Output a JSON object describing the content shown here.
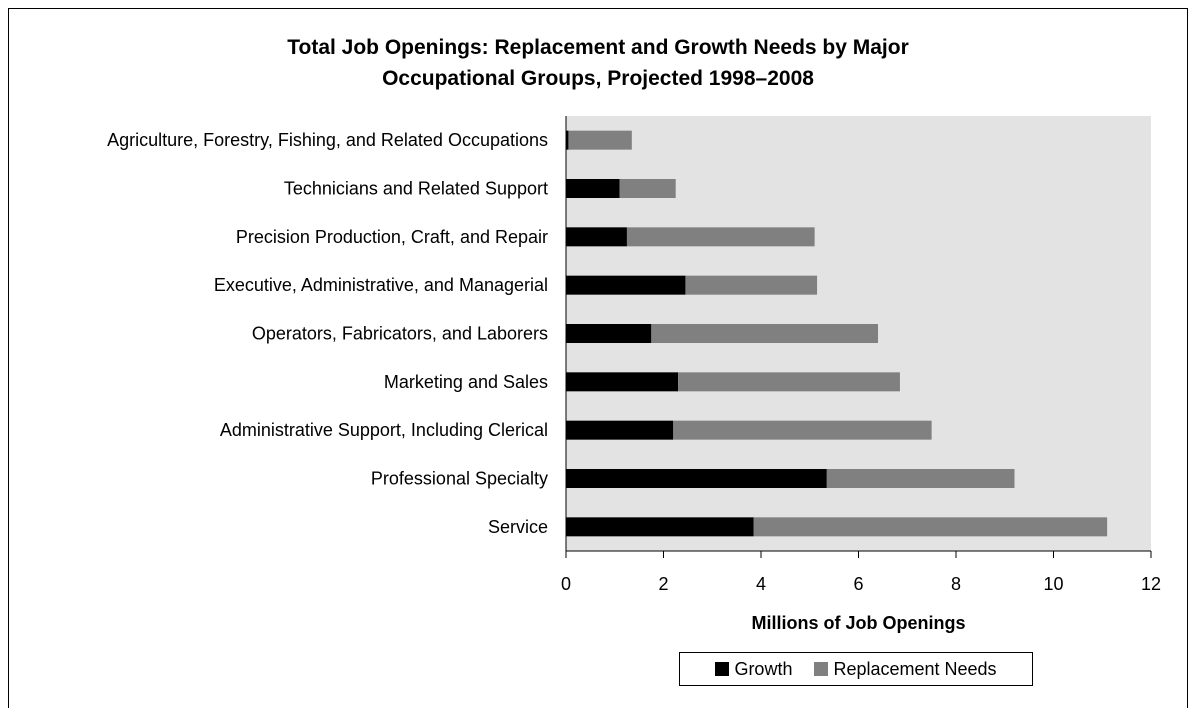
{
  "chart_data": {
    "type": "bar",
    "orientation": "horizontal",
    "stacked": true,
    "title_lines": [
      "Total Job Openings: Replacement and Growth Needs by Major",
      "Occupational Groups, Projected 1998–2008"
    ],
    "xlabel": "Millions of Job Openings",
    "ylabel": "",
    "xlim": [
      0,
      12
    ],
    "xticks": [
      "0",
      "2",
      "4",
      "6",
      "8",
      "10",
      "12"
    ],
    "grid": false,
    "legend_position": "bottom",
    "categories": [
      "Agriculture, Forestry, Fishing, and Related Occupations",
      "Technicians and Related Support",
      "Precision Production, Craft, and Repair",
      "Executive, Administrative, and Managerial",
      "Operators, Fabricators, and Laborers",
      "Marketing and Sales",
      "Administrative Support, Including Clerical",
      "Professional Specialty",
      "Service"
    ],
    "series": [
      {
        "name": "Growth",
        "color": "#000000",
        "values": [
          0.05,
          1.1,
          1.25,
          2.45,
          1.75,
          2.3,
          2.2,
          5.35,
          3.85
        ]
      },
      {
        "name": "Replacement Needs",
        "color": "#808080",
        "values": [
          1.3,
          1.15,
          3.85,
          2.7,
          4.65,
          4.55,
          5.3,
          3.85,
          7.25
        ]
      }
    ],
    "plot_background": "#e3e3e3"
  }
}
